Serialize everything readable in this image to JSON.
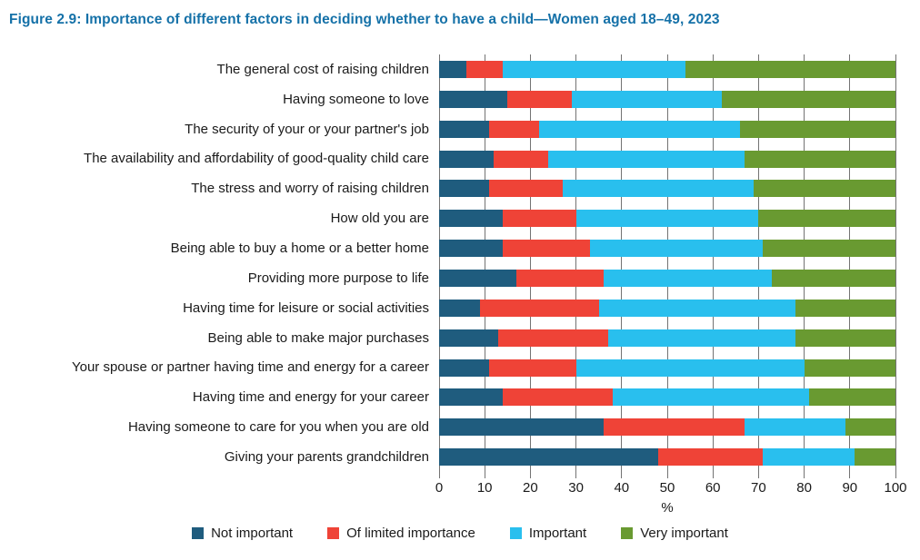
{
  "title": "Figure 2.9: Importance of different factors in deciding whether to have a child—Women aged 18–49, 2023",
  "colors": {
    "title_blue": "#1571a8",
    "not_important": "#1f5c7e",
    "of_limited_importance": "#ef4337",
    "important": "#29bfee",
    "very_important": "#699a31",
    "gridline": "#737373",
    "text": "#1a1a1a"
  },
  "chart_data": {
    "type": "bar",
    "stacked": true,
    "orientation": "horizontal",
    "title": "Figure 2.9: Importance of different factors in deciding whether to have a child—Women aged 18–49, 2023",
    "categories": [
      "The general cost of raising children",
      "Having someone to love",
      "The security of your or your partner's job",
      "The availability and affordability of good-quality child care",
      "The stress and worry of raising children",
      "How old you are",
      "Being able to buy a home or a better home",
      "Providing more purpose to life",
      "Having time for leisure or social activities",
      "Being able to make major purchases",
      "Your spouse or partner having time and energy for a career",
      "Having time and energy for your career",
      "Having someone to care for you when you are old",
      "Giving your parents grandchildren"
    ],
    "series": [
      {
        "name": "Not important",
        "color": "#1f5c7e",
        "values": [
          6,
          15,
          11,
          12,
          11,
          14,
          14,
          17,
          9,
          13,
          11,
          14,
          36,
          48
        ]
      },
      {
        "name": "Of limited importance",
        "color": "#ef4337",
        "values": [
          8,
          14,
          11,
          12,
          16,
          16,
          19,
          19,
          26,
          24,
          19,
          24,
          31,
          23
        ]
      },
      {
        "name": "Important",
        "color": "#29bfee",
        "values": [
          40,
          33,
          44,
          43,
          42,
          40,
          38,
          37,
          43,
          41,
          50,
          43,
          22,
          20
        ]
      },
      {
        "name": "Very important",
        "color": "#699a31",
        "values": [
          46,
          38,
          34,
          33,
          31,
          30,
          29,
          27,
          22,
          22,
          20,
          19,
          11,
          9
        ]
      }
    ],
    "xlabel": "%",
    "x_ticks": [
      0,
      10,
      20,
      30,
      40,
      50,
      60,
      70,
      80,
      90,
      100
    ],
    "xlim": [
      0,
      100
    ],
    "grid": true,
    "legend_position": "bottom"
  }
}
